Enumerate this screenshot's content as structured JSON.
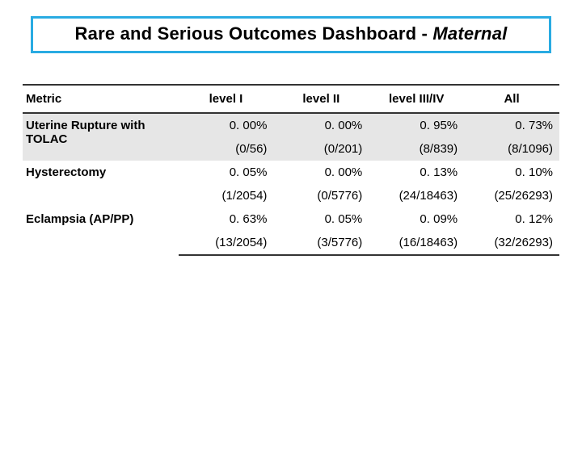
{
  "title": {
    "plain": "Rare and Serious Outcomes Dashboard - ",
    "italic": "Maternal"
  },
  "colors": {
    "title_border": "#29abe2",
    "shaded_row_bg": "#e6e6e6",
    "rule_color": "#333333",
    "background": "#ffffff"
  },
  "table": {
    "columns": [
      "Metric",
      "level I",
      "level II",
      "level III/IV",
      "All"
    ],
    "metrics": [
      {
        "name": "Uterine Rupture with TOLAC",
        "shaded": true,
        "pct": [
          "0. 00%",
          "0. 00%",
          "0. 95%",
          "0. 73%"
        ],
        "count": [
          "(0/56)",
          "(0/201)",
          "(8/839)",
          "(8/1096)"
        ]
      },
      {
        "name": "Hysterectomy",
        "shaded": false,
        "pct": [
          "0. 05%",
          "0. 00%",
          "0. 13%",
          "0. 10%"
        ],
        "count": [
          "(1/2054)",
          "(0/5776)",
          "(24/18463)",
          "(25/26293)"
        ]
      },
      {
        "name": "Eclampsia (AP/PP)",
        "shaded": false,
        "pct": [
          "0. 63%",
          "0. 05%",
          "0. 09%",
          "0. 12%"
        ],
        "count": [
          "(13/2054)",
          "(3/5776)",
          "(16/18463)",
          "(32/26293)"
        ]
      }
    ]
  }
}
